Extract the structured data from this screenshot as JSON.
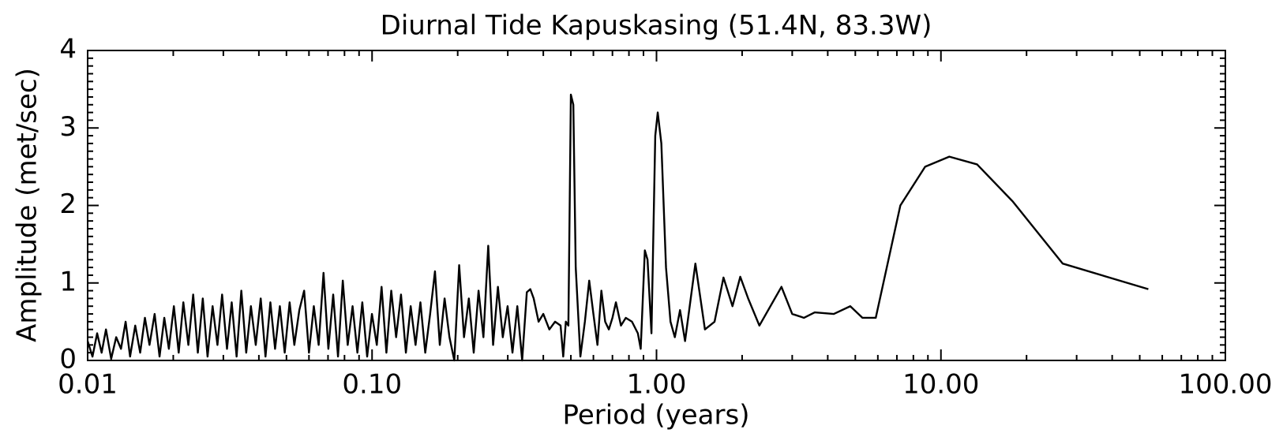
{
  "chart_data": {
    "type": "line",
    "title": "Diurnal Tide Kapuskasing (51.4N, 83.3W)",
    "xlabel": "Period (years)",
    "ylabel": "Amplitude (met/sec)",
    "xscale": "log",
    "xlim": [
      0.01,
      100
    ],
    "ylim": [
      0,
      4
    ],
    "xticks": [
      0.01,
      {
        "value": 0.1,
        "label": "0.10"
      },
      {
        "value": 1,
        "label": "1.00"
      },
      {
        "value": 10,
        "label": "10.00"
      },
      {
        "value": 100,
        "label": "100.00"
      }
    ],
    "yticks": [
      0,
      1,
      2,
      3,
      4
    ],
    "series": [
      {
        "color": "#000000",
        "x": [
          0.01,
          0.0104,
          0.0108,
          0.0112,
          0.0116,
          0.0121,
          0.0126,
          0.0131,
          0.0136,
          0.0141,
          0.0147,
          0.0153,
          0.0159,
          0.0165,
          0.0172,
          0.0179,
          0.0186,
          0.0193,
          0.0201,
          0.0209,
          0.0217,
          0.0226,
          0.0235,
          0.0244,
          0.0254,
          0.0264,
          0.0275,
          0.0286,
          0.0297,
          0.0309,
          0.0321,
          0.0334,
          0.0347,
          0.0361,
          0.0375,
          0.039,
          0.0406,
          0.0422,
          0.0439,
          0.0456,
          0.0474,
          0.0493,
          0.0513,
          0.0533,
          0.0555,
          0.0577,
          0.06,
          0.0624,
          0.0649,
          0.0675,
          0.0702,
          0.073,
          0.0759,
          0.0789,
          0.0821,
          0.0854,
          0.0888,
          0.0924,
          0.0961,
          0.0999,
          0.1039,
          0.108,
          0.1123,
          0.1168,
          0.1215,
          0.1264,
          0.1315,
          0.1367,
          0.1422,
          0.1479,
          0.1538,
          0.16,
          0.1664,
          0.173,
          0.1799,
          0.1871,
          0.1946,
          0.2024,
          0.2105,
          0.2189,
          0.2277,
          0.2368,
          0.2463,
          0.2561,
          0.2664,
          0.277,
          0.2881,
          0.2996,
          0.3116,
          0.3241,
          0.337,
          0.35,
          0.36,
          0.37,
          0.385,
          0.4,
          0.42,
          0.44,
          0.46,
          0.47,
          0.48,
          0.49,
          0.5,
          0.51,
          0.52,
          0.54,
          0.56,
          0.58,
          0.6,
          0.62,
          0.64,
          0.66,
          0.68,
          0.7,
          0.72,
          0.75,
          0.78,
          0.82,
          0.86,
          0.88,
          0.91,
          0.93,
          0.96,
          0.99,
          1.01,
          1.04,
          1.08,
          1.12,
          1.16,
          1.21,
          1.26,
          1.37,
          1.48,
          1.6,
          1.72,
          1.85,
          1.97,
          2.1,
          2.3,
          2.75,
          3.0,
          3.3,
          3.6,
          4.2,
          4.8,
          5.3,
          5.9,
          7.2,
          8.8,
          10.7,
          13.4,
          17.9,
          26.8,
          53.6
        ],
        "values": [
          0.25,
          0.05,
          0.35,
          0.1,
          0.4,
          0.02,
          0.3,
          0.15,
          0.5,
          0.05,
          0.45,
          0.1,
          0.55,
          0.2,
          0.6,
          0.05,
          0.55,
          0.15,
          0.7,
          0.1,
          0.75,
          0.2,
          0.85,
          0.1,
          0.8,
          0.05,
          0.7,
          0.2,
          0.85,
          0.15,
          0.75,
          0.05,
          0.9,
          0.1,
          0.7,
          0.2,
          0.8,
          0.05,
          0.75,
          0.15,
          0.7,
          0.1,
          0.75,
          0.2,
          0.65,
          0.9,
          0.1,
          0.7,
          0.2,
          1.13,
          0.15,
          0.85,
          0.05,
          1.03,
          0.2,
          0.7,
          0.1,
          0.75,
          0.05,
          0.6,
          0.2,
          0.95,
          0.1,
          0.9,
          0.3,
          0.85,
          0.1,
          0.7,
          0.2,
          0.75,
          0.1,
          0.6,
          1.15,
          0.2,
          0.8,
          0.3,
          0.0,
          1.23,
          0.3,
          0.8,
          0.1,
          0.9,
          0.3,
          1.48,
          0.2,
          0.95,
          0.3,
          0.7,
          0.1,
          0.7,
          0.0,
          0.88,
          0.92,
          0.8,
          0.5,
          0.6,
          0.4,
          0.5,
          0.45,
          0.05,
          0.5,
          0.45,
          3.43,
          3.3,
          1.2,
          0.05,
          0.5,
          1.03,
          0.6,
          0.2,
          0.9,
          0.5,
          0.4,
          0.55,
          0.75,
          0.45,
          0.55,
          0.5,
          0.35,
          0.15,
          1.42,
          1.3,
          0.35,
          2.9,
          3.2,
          2.8,
          1.2,
          0.5,
          0.3,
          0.65,
          0.25,
          1.25,
          0.4,
          0.5,
          1.07,
          0.7,
          1.08,
          0.8,
          0.45,
          0.95,
          0.6,
          0.55,
          0.62,
          0.6,
          0.7,
          0.55,
          0.55,
          2.0,
          2.5,
          2.63,
          2.53,
          2.05,
          1.25,
          0.92
        ]
      }
    ]
  }
}
